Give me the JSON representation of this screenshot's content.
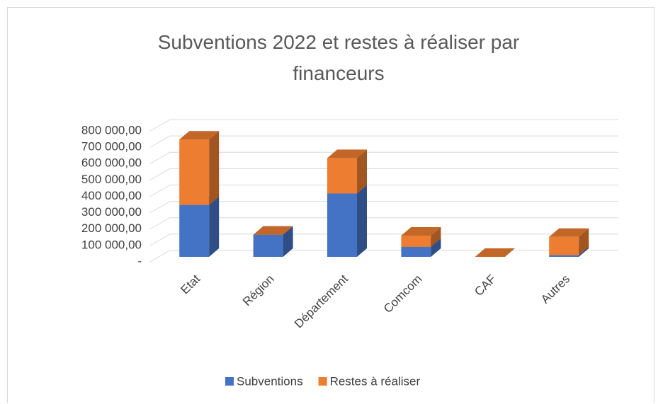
{
  "chart_data": {
    "type": "bar3d_stacked",
    "title": "Subventions 2022 et restes à réaliser par financeurs",
    "categories": [
      "Etat",
      "Région",
      "Département",
      "Comcom",
      "CAF",
      "Autres"
    ],
    "series": [
      {
        "name": "Subventions",
        "color": "#4472c4",
        "values": [
          317000,
          135000,
          387000,
          61000,
          0,
          10000
        ]
      },
      {
        "name": "Restes à réaliser",
        "color": "#ed7d31",
        "values": [
          400000,
          0,
          217000,
          69000,
          0,
          112000
        ]
      }
    ],
    "ylim": [
      0,
      800000
    ],
    "yticks": [
      {
        "value": 0,
        "label": "-"
      },
      {
        "value": 100000,
        "label": "100 000,00"
      },
      {
        "value": 200000,
        "label": "200 000,00"
      },
      {
        "value": 300000,
        "label": "300 000,00"
      },
      {
        "value": 400000,
        "label": "400 000,00"
      },
      {
        "value": 500000,
        "label": "500 000,00"
      },
      {
        "value": 600000,
        "label": "600 000,00"
      },
      {
        "value": 700000,
        "label": "700 000,00"
      },
      {
        "value": 800000,
        "label": "800 000,00"
      }
    ],
    "grid": true,
    "legend": "bottom"
  }
}
